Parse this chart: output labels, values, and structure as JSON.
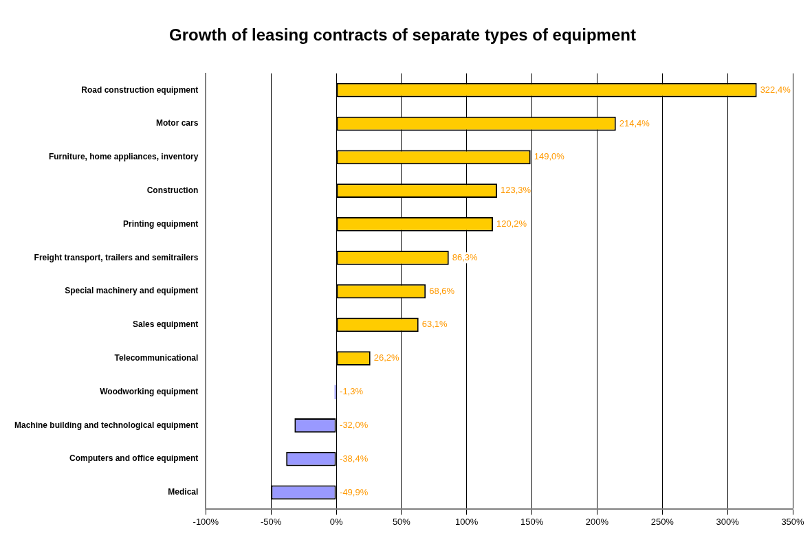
{
  "chart_data": {
    "type": "bar",
    "orientation": "horizontal",
    "title": "Growth of leasing contracts of separate types of equipment",
    "categories": [
      "Road construction equipment",
      "Motor cars",
      "Furniture, home appliances, inventory",
      "Construction",
      "Printing equipment",
      "Freight transport, trailers and semitrailers",
      "Special machinery and equipment",
      "Sales equipment",
      "Telecommunicational",
      "Woodworking equipment",
      "Machine building and technological equipment",
      "Computers and office equipment",
      "Medical"
    ],
    "values": [
      322.4,
      214.4,
      149.0,
      123.3,
      120.2,
      86.3,
      68.6,
      63.1,
      26.2,
      -1.3,
      -32.0,
      -38.4,
      -49.9
    ],
    "value_labels": [
      "322,4%",
      "214,4%",
      "149,0%",
      "123,3%",
      "120,2%",
      "86,3%",
      "68,6%",
      "63,1%",
      "26,2%",
      "-1,3%",
      "-32,0%",
      "-38,4%",
      "-49,9%"
    ],
    "colors": [
      "#ffcc00",
      "#ffcc00",
      "#ffcc00",
      "#ffcc00",
      "#ffcc00",
      "#ffcc00",
      "#ffcc00",
      "#ffcc00",
      "#ffcc00",
      "#9999ff",
      "#9999ff",
      "#9999ff",
      "#9999ff"
    ],
    "xlim": [
      -100,
      350
    ],
    "xticks": [
      {
        "value": -100,
        "label": "-100%"
      },
      {
        "value": -50,
        "label": "-50%"
      },
      {
        "value": 0,
        "label": "0%"
      },
      {
        "value": 50,
        "label": "50%"
      },
      {
        "value": 100,
        "label": "100%"
      },
      {
        "value": 150,
        "label": "150%"
      },
      {
        "value": 200,
        "label": "200%"
      },
      {
        "value": 250,
        "label": "250%"
      },
      {
        "value": 300,
        "label": "300%"
      },
      {
        "value": 350,
        "label": "350%"
      }
    ],
    "grid": "x",
    "legend": false
  }
}
